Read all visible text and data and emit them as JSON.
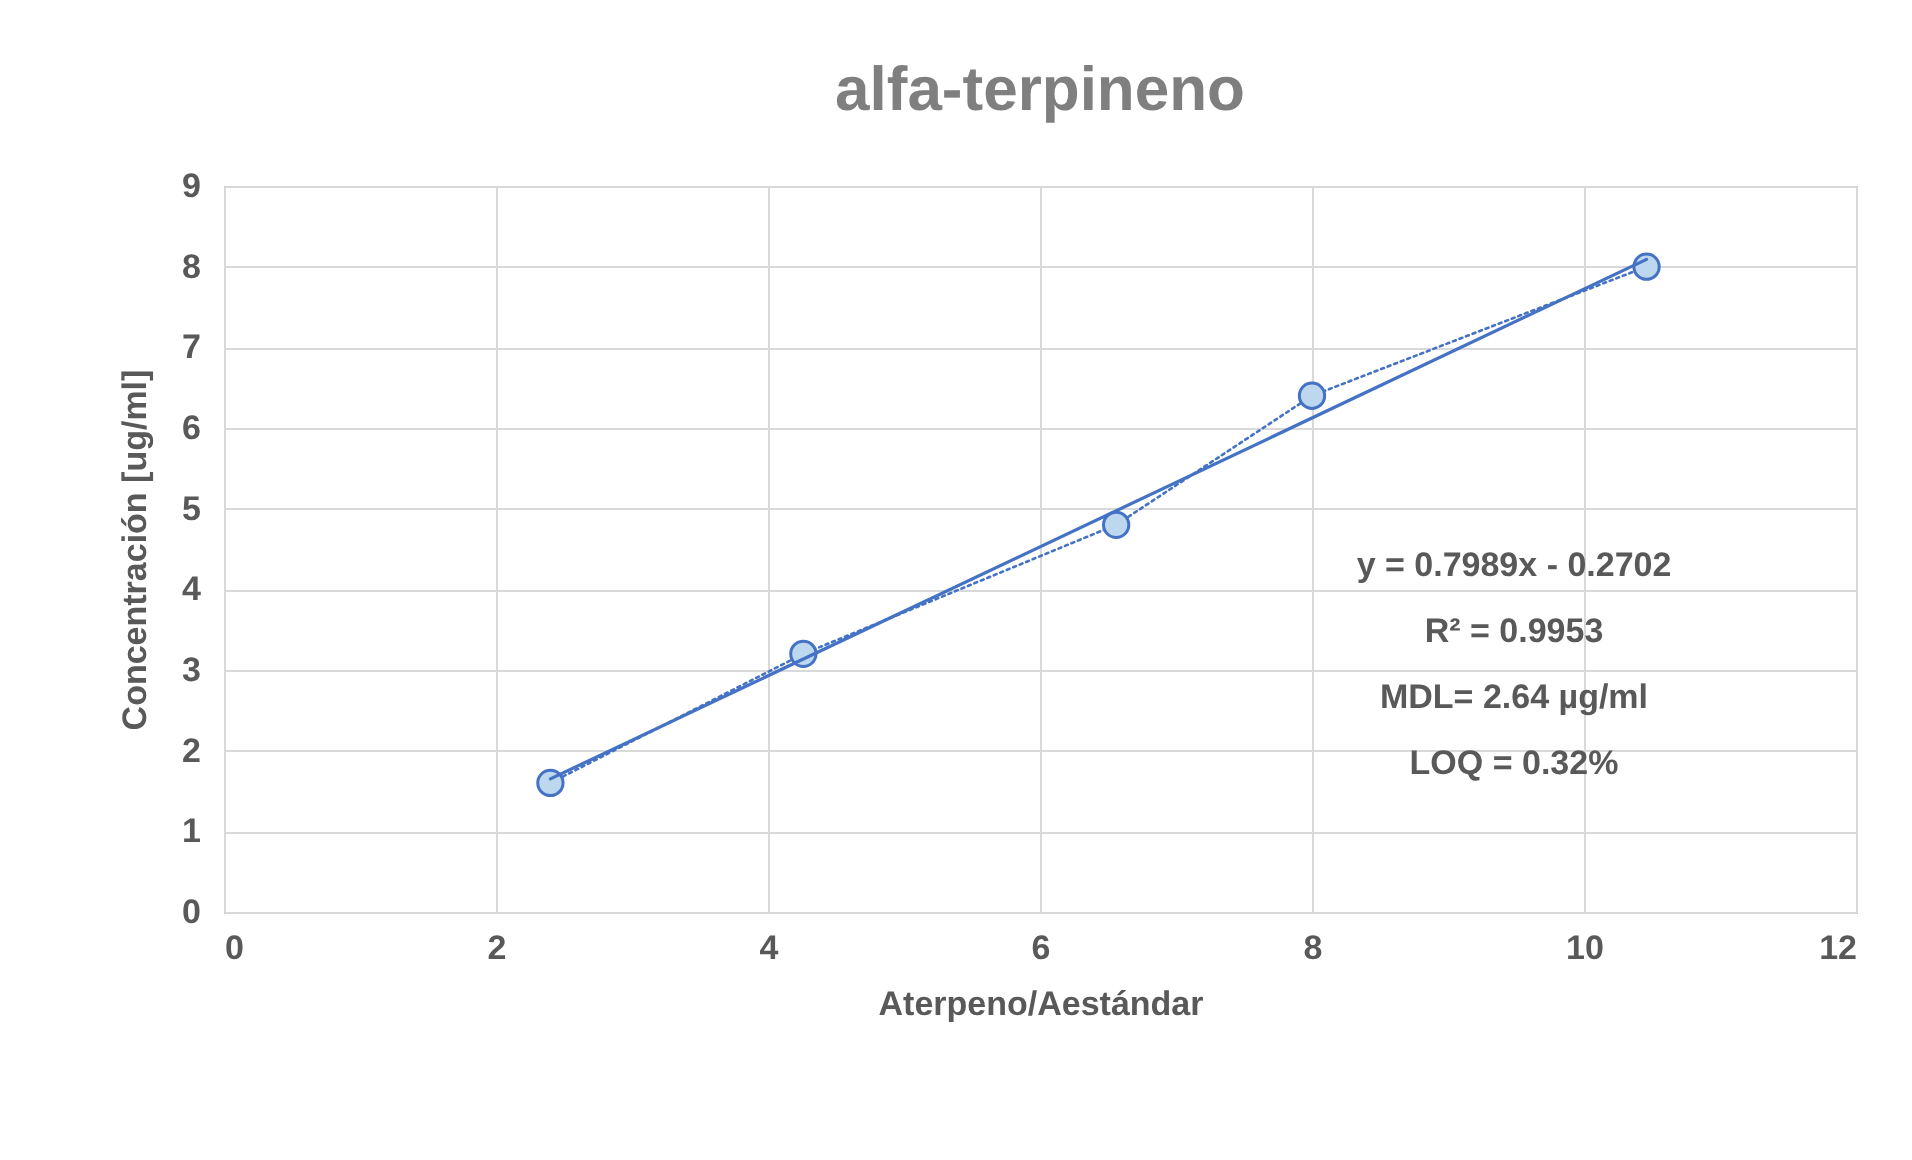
{
  "chart_data": {
    "type": "line",
    "title": "alfa-terpineno",
    "xlabel": "Aterpeno/Aestándar",
    "ylabel": "Concentración [ug/ml]",
    "series": [
      {
        "type": "line",
        "color": "#4472c4",
        "x": [
          2.4,
          4.26,
          6.56,
          8.0,
          10.46
        ],
        "values": [
          1.6,
          3.2,
          4.8,
          6.4,
          8.0
        ],
        "marker": "circle",
        "line_style": "dotted"
      },
      {
        "type": "line",
        "color": "#4472c4",
        "x": [
          2.4,
          10.46
        ],
        "values": [
          1.65,
          8.09
        ],
        "marker": "none",
        "line_style": "solid"
      }
    ],
    "xlim": [
      0,
      12
    ],
    "xticks": [
      0,
      2,
      4,
      6,
      8,
      10,
      12
    ],
    "ylim": [
      0,
      9
    ],
    "yticks": [
      0,
      1,
      2,
      3,
      4,
      5,
      6,
      7,
      8,
      9
    ],
    "grid": true,
    "annotations": [
      "y = 0.7989x - 0.2702",
      "R² = 0.9953",
      "MDL= 2.64 µg/ml",
      "LOQ = 0.32%"
    ]
  }
}
